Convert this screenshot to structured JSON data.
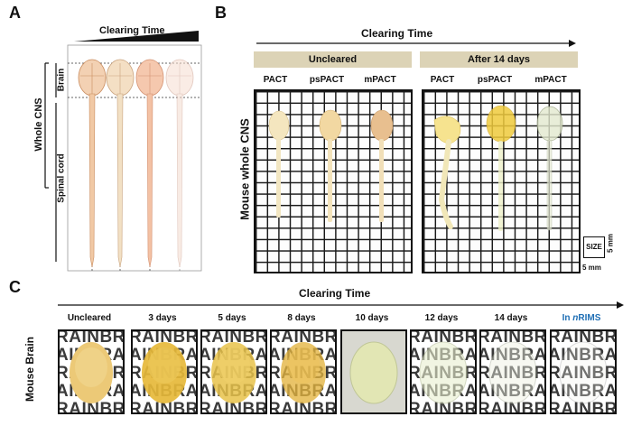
{
  "panelA": {
    "label": "A",
    "clearing_time": "Clearing Time",
    "whole_cns": "Whole CNS",
    "brain": "Brain",
    "spinal_cord": "Spinal cord"
  },
  "panelB": {
    "label": "B",
    "clearing_time": "Clearing Time",
    "uncleared": "Uncleared",
    "after": "After 14 days",
    "cols_left": [
      "PACT",
      "psPACT",
      "mPACT"
    ],
    "cols_right": [
      "PACT",
      "psPACT",
      "mPACT"
    ],
    "side_label": "Mouse whole CNS",
    "size_label": "SIZE",
    "scale_h": "5 mm",
    "scale_w": "5 mm"
  },
  "panelC": {
    "label": "C",
    "clearing_time": "Clearing Time",
    "side_label": "Mouse Brain",
    "times": [
      "Uncleared",
      "3 days",
      "5 days",
      "8 days",
      "10 days",
      "12 days",
      "14 days"
    ],
    "last_prefix": "In ",
    "last_italic": "n",
    "last_suffix": "RIMS",
    "last_color": "#1f6fb5",
    "backdrop_text": "RAINBRA\nAINBRAIN\nRAINBRA\nAINBRAIN\nRAINBRA"
  }
}
